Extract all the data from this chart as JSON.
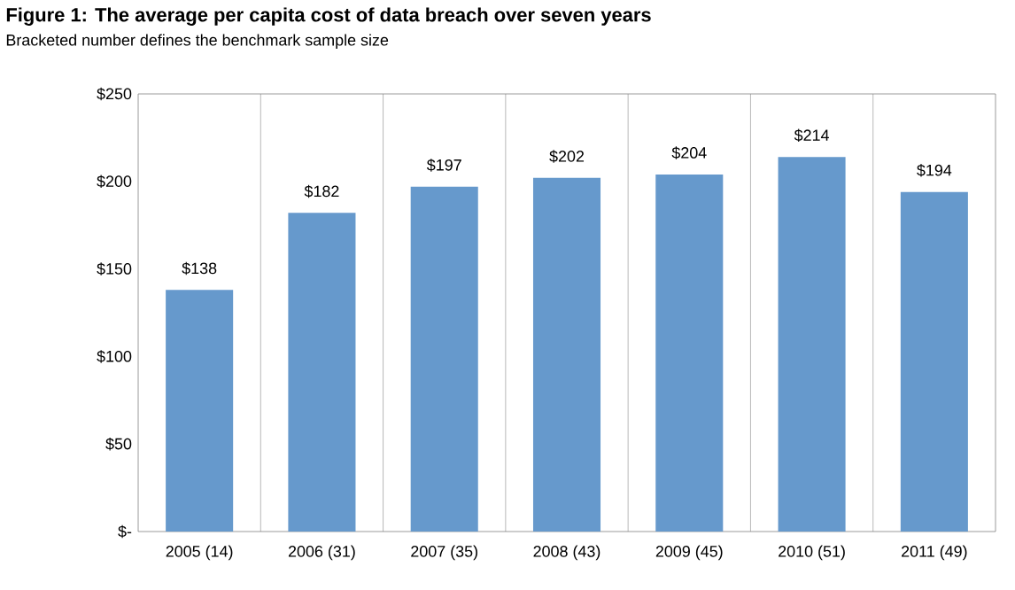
{
  "chart_data": {
    "type": "bar",
    "title": "Figure 1: The average per capita cost of data breach over seven years",
    "subtitle": "Bracketed number defines the benchmark sample size",
    "categories": [
      "2005 (14)",
      "2006 (31)",
      "2007 (35)",
      "2008 (43)",
      "2009 (45)",
      "2010 (51)",
      "2011 (49)"
    ],
    "values": [
      138,
      182,
      197,
      202,
      204,
      214,
      194
    ],
    "value_labels": [
      "$138",
      "$182",
      "$197",
      "$202",
      "$204",
      "$214",
      "$194"
    ],
    "color": "#6699cc",
    "ylim": [
      0,
      250
    ],
    "yticks": [
      {
        "value": 0,
        "label": "$-"
      },
      {
        "value": 50,
        "label": "$50"
      },
      {
        "value": 100,
        "label": "$100"
      },
      {
        "value": 150,
        "label": "$150"
      },
      {
        "value": 200,
        "label": "$200"
      },
      {
        "value": 250,
        "label": "$250"
      }
    ],
    "grid": "x"
  }
}
